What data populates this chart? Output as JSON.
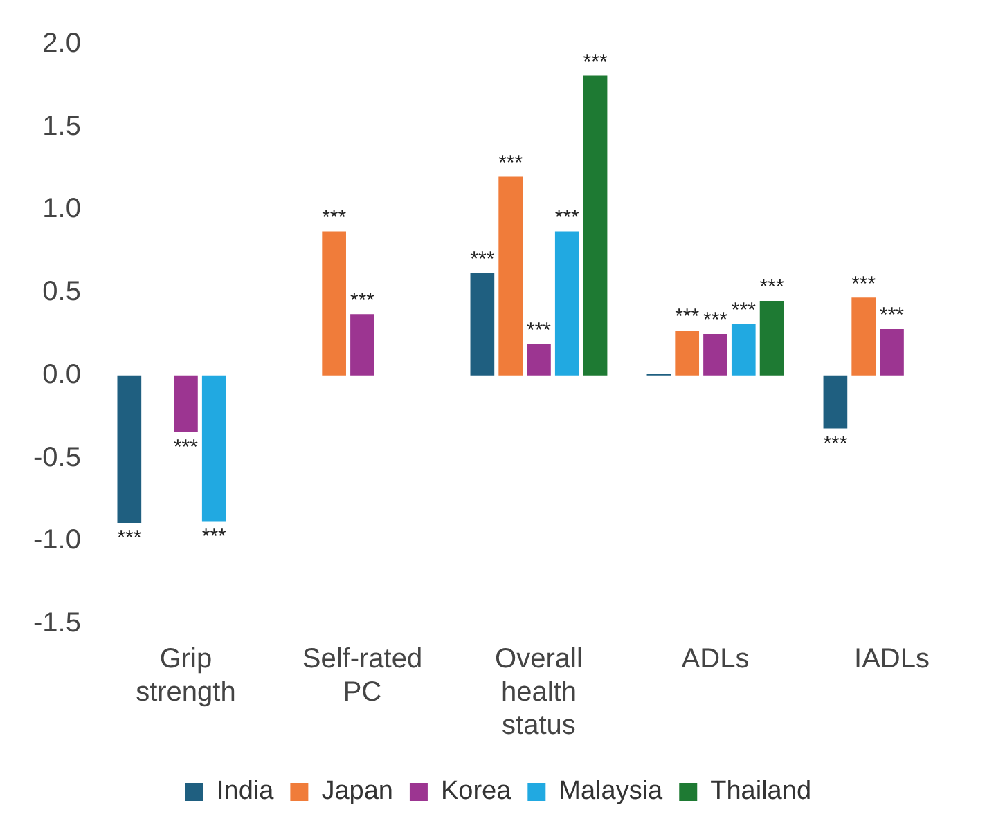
{
  "chart_data": {
    "type": "bar",
    "categories": [
      "Grip strength",
      "Self-rated PC",
      "Overall health status",
      "ADLs",
      "IADLs"
    ],
    "series": [
      {
        "name": "India",
        "color": "#1f5f80",
        "values": [
          -0.89,
          null,
          0.62,
          0.01,
          -0.32
        ],
        "value_labels": [
          "***",
          null,
          "***",
          null,
          "***"
        ]
      },
      {
        "name": "Japan",
        "color": "#f07c3a",
        "values": [
          null,
          0.87,
          1.2,
          0.27,
          0.47
        ],
        "value_labels": [
          null,
          "***",
          "***",
          "***",
          "***"
        ]
      },
      {
        "name": "Korea",
        "color": "#9c3591",
        "values": [
          -0.34,
          0.37,
          0.19,
          0.25,
          0.28
        ],
        "value_labels": [
          "***",
          "***",
          "***",
          "***",
          "***"
        ]
      },
      {
        "name": "Malaysia",
        "color": "#21a9e1",
        "values": [
          -0.88,
          null,
          0.87,
          0.31,
          null
        ],
        "value_labels": [
          "***",
          null,
          "***",
          "***",
          null
        ]
      },
      {
        "name": "Thailand",
        "color": "#1e7a33",
        "values": [
          null,
          null,
          1.81,
          0.45,
          null
        ],
        "value_labels": [
          null,
          null,
          "***",
          "***",
          null
        ]
      }
    ],
    "ylim": [
      -1.5,
      2.0
    ],
    "yticks": [
      {
        "value": -1.5,
        "label": "-1.5"
      },
      {
        "value": -1,
        "label": "-1.0"
      },
      {
        "value": -0.5,
        "label": "-0.5"
      },
      {
        "value": 0,
        "label": "0.0"
      },
      {
        "value": 0.5,
        "label": "0.5"
      },
      {
        "value": 1,
        "label": "1.0"
      },
      {
        "value": 1.5,
        "label": "1.5"
      },
      {
        "value": 2,
        "label": "2.0"
      }
    ],
    "grid": false,
    "legend": "bottom"
  }
}
